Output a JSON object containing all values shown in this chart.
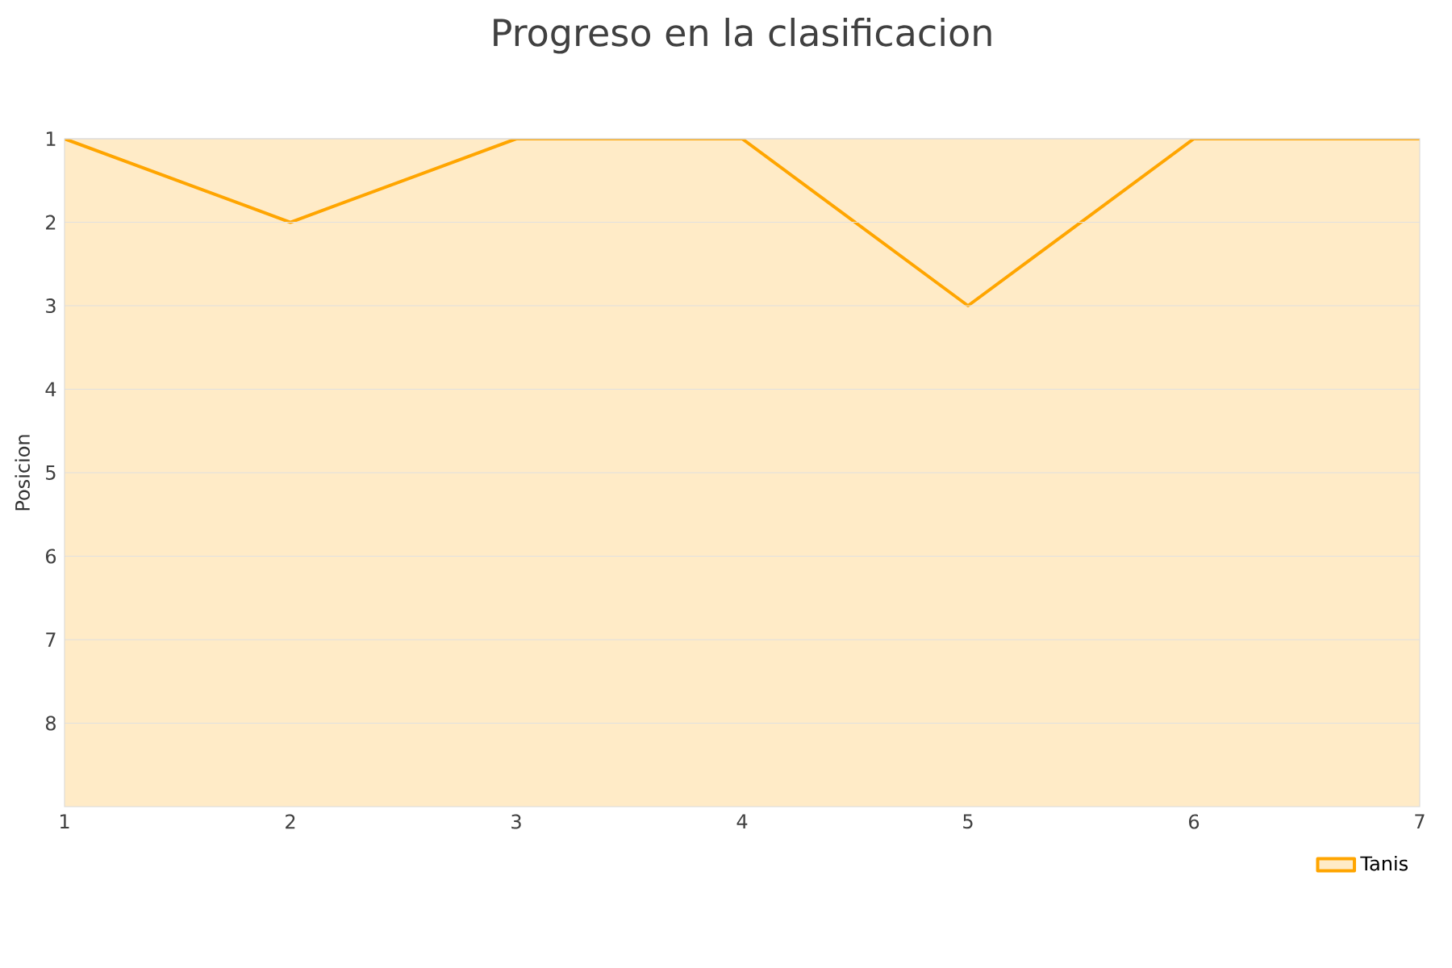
{
  "chart_data": {
    "type": "area",
    "title": "Progreso en la clasificacion",
    "ylabel": "Posicion",
    "x": [
      1,
      2,
      3,
      4,
      5,
      6,
      7
    ],
    "series": [
      {
        "name": "Tanis",
        "color": "#ffa500",
        "values": [
          1,
          2,
          1,
          1,
          3,
          1,
          1
        ]
      }
    ],
    "xlim": [
      1,
      7
    ],
    "xticks": [
      1,
      2,
      3,
      4,
      5,
      6,
      7
    ],
    "ylim": [
      9,
      1
    ],
    "yticks": [
      1,
      2,
      3,
      4,
      5,
      6,
      7,
      8
    ],
    "grid": "y",
    "legend": "bottom right"
  }
}
